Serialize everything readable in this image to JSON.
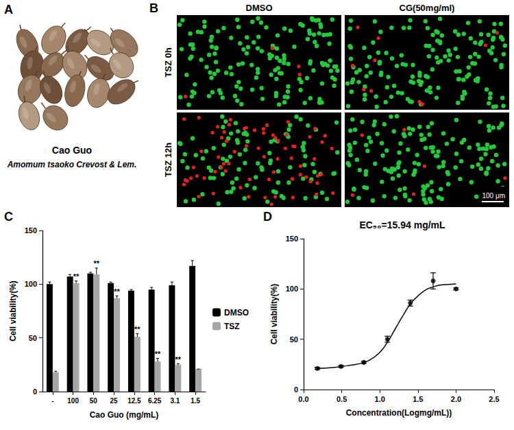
{
  "panels": {
    "A": {
      "panel_label": "A",
      "name": "Cao Guo",
      "latin_name": "Amomum tsaoko Crevost & Lem."
    },
    "B": {
      "panel_label": "B",
      "columns": [
        "DMSO",
        "CG(50mg/ml)"
      ],
      "rows": [
        "TSZ 0h",
        "TSZ 12h"
      ],
      "scale_bar": "100 μm"
    }
  },
  "chart_data": [
    {
      "panel_label": "C",
      "type": "bar",
      "categories": [
        "-",
        "100",
        "50",
        "25",
        "12.5",
        "6.25",
        "3.1",
        "1.5"
      ],
      "series": [
        {
          "name": "DMSO",
          "color": "#000000",
          "values": [
            100,
            107,
            110,
            101,
            94,
            95,
            99,
            117
          ],
          "errors": [
            2,
            2,
            1,
            1,
            1,
            2,
            3,
            5
          ]
        },
        {
          "name": "TSZ",
          "color": "#a6a6a6",
          "values": [
            18,
            101,
            109,
            87,
            51,
            28,
            25,
            21
          ],
          "errors": [
            1,
            2,
            6,
            2,
            3,
            3,
            1,
            0
          ],
          "annotations": [
            null,
            "**",
            "**",
            "**",
            "**",
            "**",
            "**",
            null
          ]
        }
      ],
      "x_label": "Cao Guo (mg/mL)",
      "y_label": "Cell viability(%)",
      "ylim": [
        0,
        150
      ],
      "yticks": [
        0,
        50,
        100,
        150
      ],
      "legend": "right",
      "grid": false
    },
    {
      "panel_label": "D",
      "type": "scatter",
      "title": "EC₅₀=15.94 mg/mL",
      "x_label": "Concentration(Logmg/mL))",
      "y_label": "Cell viability(%)",
      "x": [
        0.18,
        0.49,
        0.79,
        1.1,
        1.4,
        1.7,
        2.0
      ],
      "values": [
        21,
        23,
        27,
        50,
        86,
        108,
        100
      ],
      "errors": [
        1,
        1,
        1,
        3,
        3,
        8,
        1
      ],
      "fit": {
        "x": [
          0.18,
          0.4,
          0.6,
          0.8,
          0.9,
          1.0,
          1.1,
          1.2,
          1.3,
          1.4,
          1.5,
          1.6,
          1.7,
          1.8,
          1.9,
          2.0
        ],
        "values": [
          21,
          22,
          24,
          27,
          31,
          37,
          47,
          60,
          73,
          85,
          93,
          99,
          102,
          104,
          104.5,
          105
        ]
      },
      "color": "#000000",
      "marker": "circle",
      "xlim": [
        0,
        2.5
      ],
      "xticks": [
        {
          "value": 0,
          "label": "0.0"
        },
        0.5,
        {
          "value": 1,
          "label": "1.0"
        },
        1.5,
        {
          "value": 2,
          "label": "2.0"
        },
        2.5
      ],
      "ylim": [
        0,
        150
      ],
      "yticks": [
        0,
        50,
        100,
        150
      ],
      "grid": false
    }
  ]
}
